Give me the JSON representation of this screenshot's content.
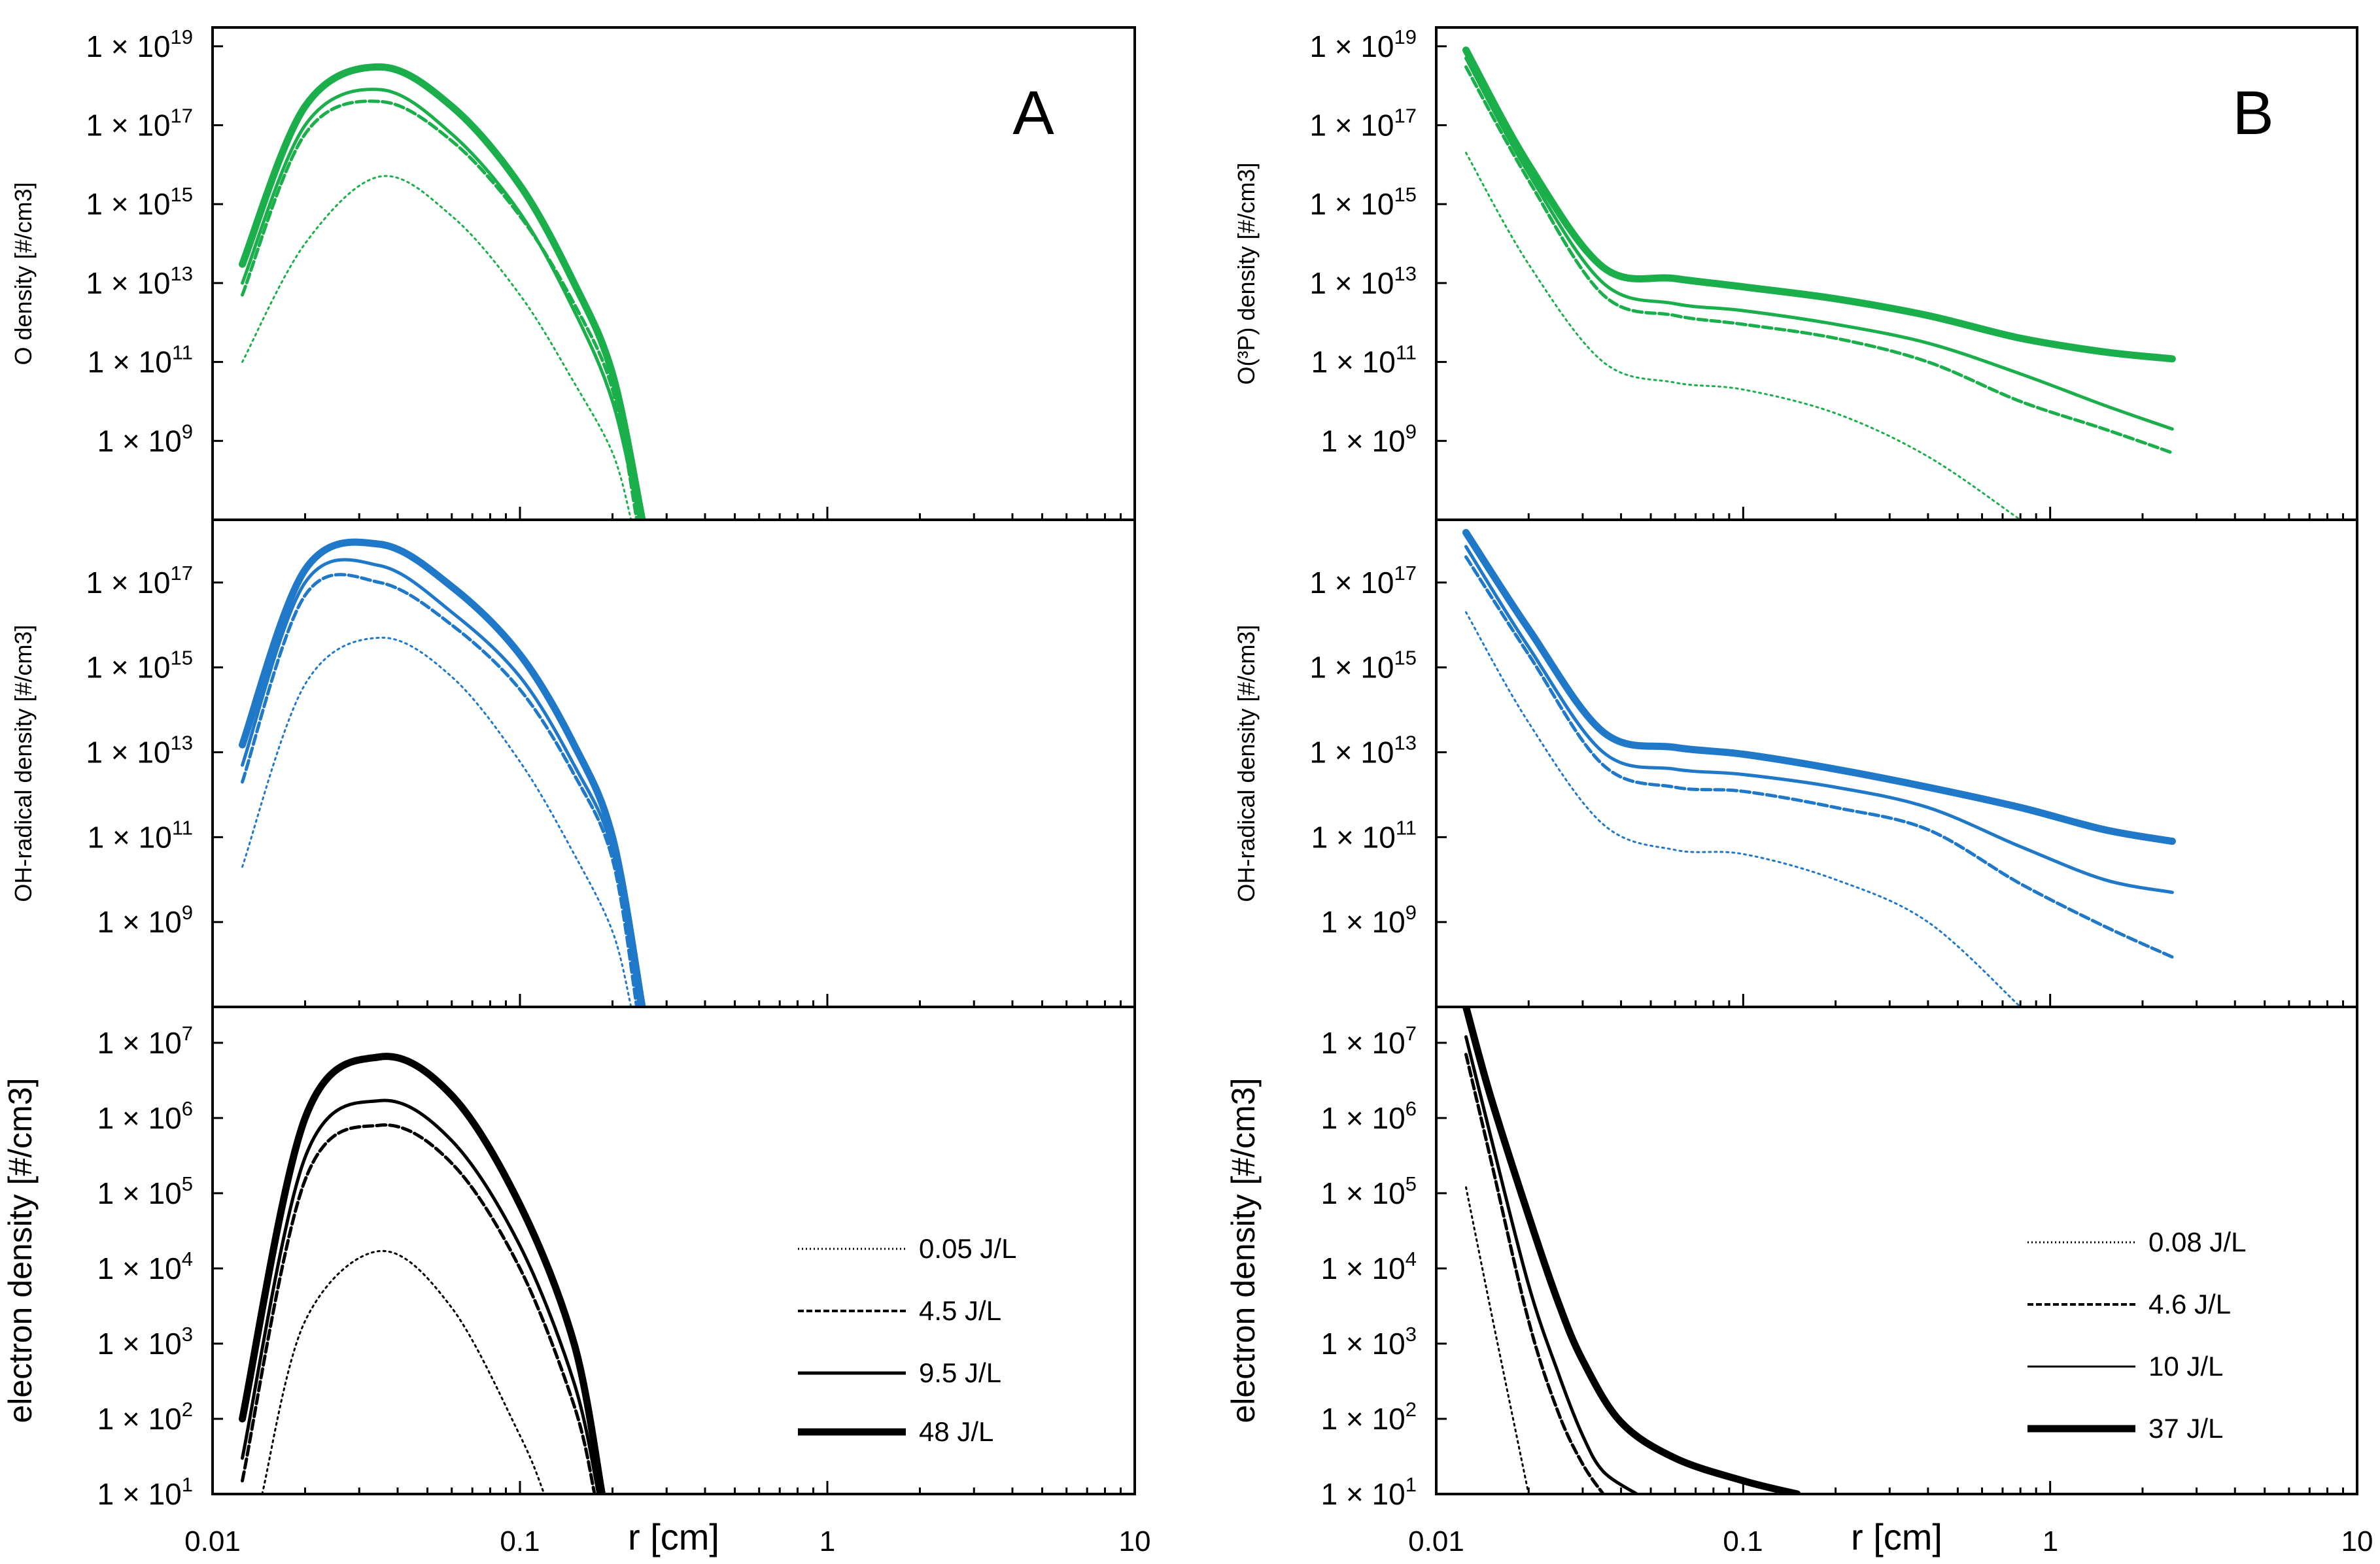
{
  "legends": {
    "A": [
      {
        "label": "0.05 J/L",
        "style": "dotted"
      },
      {
        "label": "4.5 J/L",
        "style": "dashed"
      },
      {
        "label": "9.5 J/L",
        "style": "thin"
      },
      {
        "label": "48 J/L",
        "style": "thick"
      }
    ],
    "B": [
      {
        "label": "0.08 J/L",
        "style": "dotted"
      },
      {
        "label": "4.6 J/L",
        "style": "dashed"
      },
      {
        "label": "10 J/L",
        "style": "thin"
      },
      {
        "label": "37 J/L",
        "style": "thick"
      }
    ]
  },
  "x_axis": {
    "label": "r [cm]",
    "ticks": [
      "0.01",
      "0.1",
      "1",
      "10"
    ]
  },
  "chart_data": [
    {
      "type": "line",
      "panel": "A",
      "title": "A",
      "xlabel": "r [cm]",
      "ylabel": "O density [#/cm3]",
      "xscale": "log",
      "yscale": "log",
      "xlim": [
        0.01,
        10
      ],
      "ylim": [
        10000000.0,
        3e+19
      ],
      "color": "#1aaf4b",
      "grid": false,
      "yticks": [
        {
          "mant": "1 × 10",
          "exp": "19",
          "v": 1e+19
        },
        {
          "mant": "1 × 10",
          "exp": "17",
          "v": 1e+17
        },
        {
          "mant": "1 × 10",
          "exp": "15",
          "v": 1000000000000000.0
        },
        {
          "mant": "1 × 10",
          "exp": "13",
          "v": 10000000000000.0
        },
        {
          "mant": "1 × 10",
          "exp": "11",
          "v": 100000000000.0
        },
        {
          "mant": "1 × 10",
          "exp": "9",
          "v": 1000000000.0
        }
      ],
      "series": [
        {
          "legend": "0.05 J/L",
          "style": "dotted",
          "x": [
            0.0125,
            0.02,
            0.035,
            0.06,
            0.1,
            0.15,
            0.2,
            0.23
          ],
          "y": [
            100000000000.0,
            100000000000000.0,
            5000000000000000.0,
            500000000000000.0,
            5000000000000.0,
            30000000000.0,
            500000000.0,
            10000000.0
          ]
        },
        {
          "legend": "4.5 J/L",
          "style": "dashed",
          "x": [
            0.0125,
            0.02,
            0.035,
            0.06,
            0.1,
            0.15,
            0.2,
            0.24
          ],
          "y": [
            5000000000000.0,
            6e+16,
            4e+17,
            4e+16,
            500000000000000.0,
            3000000000000.0,
            20000000000.0,
            10000000.0
          ]
        },
        {
          "legend": "9.5 J/L",
          "style": "thin",
          "x": [
            0.0125,
            0.02,
            0.035,
            0.06,
            0.1,
            0.15,
            0.2,
            0.245
          ],
          "y": [
            10000000000000.0,
            1e+17,
            8e+17,
            6e+16,
            600000000000000.0,
            2000000000000.0,
            10000000000.0,
            10000000.0
          ]
        },
        {
          "legend": "48 J/L",
          "style": "thick",
          "x": [
            0.0125,
            0.02,
            0.035,
            0.06,
            0.1,
            0.15,
            0.2,
            0.25
          ],
          "y": [
            30000000000000.0,
            3e+17,
            3e+18,
            3e+17,
            3000000000000000.0,
            10000000000000.0,
            50000000000.0,
            10000000.0
          ]
        }
      ]
    },
    {
      "type": "line",
      "panel": "A",
      "title": "",
      "xlabel": "r [cm]",
      "ylabel": "OH-radical density [#/cm3]",
      "xscale": "log",
      "yscale": "log",
      "xlim": [
        0.01,
        10
      ],
      "ylim": [
        10000000.0,
        3e+18
      ],
      "color": "#1f78c8",
      "grid": false,
      "yticks": [
        {
          "mant": "1 × 10",
          "exp": "17",
          "v": 1e+17
        },
        {
          "mant": "1 × 10",
          "exp": "15",
          "v": 1000000000000000.0
        },
        {
          "mant": "1 × 10",
          "exp": "13",
          "v": 10000000000000.0
        },
        {
          "mant": "1 × 10",
          "exp": "11",
          "v": 100000000000.0
        },
        {
          "mant": "1 × 10",
          "exp": "9",
          "v": 1000000000.0
        }
      ],
      "series": [
        {
          "legend": "0.05 J/L",
          "style": "dotted",
          "x": [
            0.0125,
            0.02,
            0.035,
            0.06,
            0.1,
            0.15,
            0.2,
            0.23
          ],
          "y": [
            20000000000.0,
            400000000000000.0,
            5000000000000000.0,
            600000000000000.0,
            6000000000000.0,
            40000000000.0,
            600000000.0,
            10000000.0
          ]
        },
        {
          "legend": "4.5 J/L",
          "style": "dashed",
          "x": [
            0.0125,
            0.02,
            0.035,
            0.06,
            0.1,
            0.15,
            0.2,
            0.24
          ],
          "y": [
            2000000000000.0,
            5e+16,
            1e+17,
            1e+16,
            300000000000000.0,
            3000000000000.0,
            30000000000.0,
            10000000.0
          ]
        },
        {
          "legend": "9.5 J/L",
          "style": "thin",
          "x": [
            0.0125,
            0.02,
            0.035,
            0.06,
            0.1,
            0.15,
            0.2,
            0.245
          ],
          "y": [
            5000000000000.0,
            1e+17,
            2.5e+17,
            2e+16,
            600000000000000.0,
            5000000000000.0,
            50000000000.0,
            10000000.0
          ]
        },
        {
          "legend": "48 J/L",
          "style": "thick",
          "x": [
            0.0125,
            0.02,
            0.035,
            0.06,
            0.1,
            0.15,
            0.2,
            0.25
          ],
          "y": [
            15000000000000.0,
            2e+17,
            8e+17,
            8e+16,
            2000000000000000.0,
            15000000000000.0,
            100000000000.0,
            10000000.0
          ]
        }
      ]
    },
    {
      "type": "line",
      "panel": "A",
      "title": "",
      "xlabel": "r [cm]",
      "ylabel": "electron  density [#/cm3]",
      "xscale": "log",
      "yscale": "log",
      "xlim": [
        0.01,
        10
      ],
      "ylim": [
        10,
        30000000.0
      ],
      "color": "#000000",
      "grid": false,
      "yticks": [
        {
          "mant": "1 × 10",
          "exp": "7",
          "v": 10000000.0
        },
        {
          "mant": "1 × 10",
          "exp": "6",
          "v": 1000000.0
        },
        {
          "mant": "1 × 10",
          "exp": "5",
          "v": 100000.0
        },
        {
          "mant": "1 × 10",
          "exp": "4",
          "v": 10000.0
        },
        {
          "mant": "1 × 10",
          "exp": "3",
          "v": 1000.0
        },
        {
          "mant": "1 × 10",
          "exp": "2",
          "v": 100
        },
        {
          "mant": "1 × 10",
          "exp": "1",
          "v": 10
        }
      ],
      "series": [
        {
          "legend": "0.05 J/L",
          "style": "dotted",
          "x": [
            0.0145,
            0.02,
            0.035,
            0.06,
            0.1,
            0.12
          ],
          "y": [
            10,
            2000.0,
            17000.0,
            3000.0,
            60,
            10
          ]
        },
        {
          "legend": "4.5 J/L",
          "style": "dashed",
          "x": [
            0.0125,
            0.02,
            0.035,
            0.06,
            0.1,
            0.15,
            0.175
          ],
          "y": [
            15,
            150000.0,
            800000.0,
            250000.0,
            10000.0,
            150,
            10
          ]
        },
        {
          "legend": "9.5 J/L",
          "style": "thin",
          "x": [
            0.0125,
            0.02,
            0.035,
            0.06,
            0.1,
            0.15,
            0.18
          ],
          "y": [
            30,
            300000.0,
            1700000.0,
            500000.0,
            20000.0,
            300,
            10
          ]
        },
        {
          "legend": "48 J/L",
          "style": "thick",
          "x": [
            0.0125,
            0.02,
            0.035,
            0.06,
            0.1,
            0.15,
            0.185
          ],
          "y": [
            100,
            1000000.0,
            6500000.0,
            2000000.0,
            70000.0,
            1000.0,
            10
          ]
        }
      ]
    },
    {
      "type": "line",
      "panel": "B",
      "title": "B",
      "xlabel": "r [cm]",
      "ylabel": "O(³P) density [#/cm3]",
      "xscale": "log",
      "yscale": "log",
      "xlim": [
        0.01,
        10
      ],
      "ylim": [
        10000000.0,
        3e+19
      ],
      "color": "#1aaf4b",
      "grid": false,
      "yticks": [
        {
          "mant": "1 × 10",
          "exp": "19",
          "v": 1e+19
        },
        {
          "mant": "1 × 10",
          "exp": "17",
          "v": 1e+17
        },
        {
          "mant": "1 × 10",
          "exp": "15",
          "v": 1000000000000000.0
        },
        {
          "mant": "1 × 10",
          "exp": "13",
          "v": 10000000000000.0
        },
        {
          "mant": "1 × 10",
          "exp": "11",
          "v": 100000000000.0
        },
        {
          "mant": "1 × 10",
          "exp": "9",
          "v": 1000000000.0
        }
      ],
      "series": [
        {
          "legend": "0.08 J/L",
          "style": "dotted",
          "x": [
            0.0125,
            0.02,
            0.035,
            0.06,
            0.1,
            0.2,
            0.4,
            0.8
          ],
          "y": [
            2e+16,
            30000000000000.0,
            100000000000.0,
            30000000000.0,
            20000000000.0,
            5000000000.0,
            400000000.0,
            10000000.0
          ]
        },
        {
          "legend": "4.6 J/L",
          "style": "dashed",
          "x": [
            0.0125,
            0.02,
            0.035,
            0.06,
            0.1,
            0.2,
            0.4,
            0.8,
            1.5,
            2.5
          ],
          "y": [
            3e+18,
            4000000000000000.0,
            5000000000000.0,
            1500000000000.0,
            900000000000.0,
            400000000000.0,
            100000000000.0,
            10000000000.0,
            2000000000.0,
            500000000.0
          ]
        },
        {
          "legend": "10 J/L",
          "style": "thin",
          "x": [
            0.0125,
            0.02,
            0.035,
            0.06,
            0.1,
            0.2,
            0.4,
            0.8,
            1.5,
            2.5
          ],
          "y": [
            5e+18,
            6000000000000000.0,
            10000000000000.0,
            3000000000000.0,
            2000000000000.0,
            900000000000.0,
            300000000000.0,
            50000000000.0,
            8000000000.0,
            2000000000.0
          ]
        },
        {
          "legend": "37 J/L",
          "style": "thick",
          "x": [
            0.0125,
            0.02,
            0.035,
            0.06,
            0.1,
            0.2,
            0.4,
            0.8,
            1.5,
            2.5
          ],
          "y": [
            8e+18,
            1e+16,
            25000000000000.0,
            13000000000000.0,
            8000000000000.0,
            4000000000000.0,
            1500000000000.0,
            400000000000.0,
            180000000000.0,
            120000000000.0
          ]
        }
      ]
    },
    {
      "type": "line",
      "panel": "B",
      "title": "",
      "xlabel": "r [cm]",
      "ylabel": "OH-radical density [#/cm3]",
      "xscale": "log",
      "yscale": "log",
      "xlim": [
        0.01,
        10
      ],
      "ylim": [
        10000000.0,
        3e+18
      ],
      "color": "#1f78c8",
      "grid": false,
      "yticks": [
        {
          "mant": "1 × 10",
          "exp": "17",
          "v": 1e+17
        },
        {
          "mant": "1 × 10",
          "exp": "15",
          "v": 1000000000000000.0
        },
        {
          "mant": "1 × 10",
          "exp": "13",
          "v": 10000000000000.0
        },
        {
          "mant": "1 × 10",
          "exp": "11",
          "v": 100000000000.0
        },
        {
          "mant": "1 × 10",
          "exp": "9",
          "v": 1000000000.0
        }
      ],
      "series": [
        {
          "legend": "0.08 J/L",
          "style": "dotted",
          "x": [
            0.0125,
            0.02,
            0.035,
            0.06,
            0.1,
            0.2,
            0.4,
            0.8
          ],
          "y": [
            2e+16,
            50000000000000.0,
            200000000000.0,
            50000000000.0,
            40000000000.0,
            10000000000.0,
            1000000000.0,
            10000000.0
          ]
        },
        {
          "legend": "4.6 J/L",
          "style": "dashed",
          "x": [
            0.0125,
            0.02,
            0.035,
            0.06,
            0.1,
            0.2,
            0.4,
            0.8,
            1.5,
            2.5
          ],
          "y": [
            4e+17,
            2000000000000000.0,
            5000000000000.0,
            1500000000000.0,
            1200000000000.0,
            500000000000.0,
            150000000000.0,
            8000000000.0,
            800000000.0,
            150000000.0
          ]
        },
        {
          "legend": "10 J/L",
          "style": "thin",
          "x": [
            0.0125,
            0.02,
            0.035,
            0.06,
            0.1,
            0.2,
            0.4,
            0.8,
            1.5,
            2.5
          ],
          "y": [
            7e+17,
            3000000000000000.0,
            10000000000000.0,
            4000000000000.0,
            3000000000000.0,
            1500000000000.0,
            500000000000.0,
            60000000000.0,
            10000000000.0,
            5000000000.0
          ]
        },
        {
          "legend": "37 J/L",
          "style": "thick",
          "x": [
            0.0125,
            0.02,
            0.035,
            0.06,
            0.1,
            0.2,
            0.4,
            0.8,
            1.5,
            2.5
          ],
          "y": [
            1.5e+18,
            8000000000000000.0,
            30000000000000.0,
            13000000000000.0,
            9000000000000.0,
            4000000000000.0,
            1500000000000.0,
            500000000000.0,
            150000000000.0,
            80000000000.0
          ]
        }
      ]
    },
    {
      "type": "line",
      "panel": "B",
      "title": "",
      "xlabel": "r [cm]",
      "ylabel": "electron density [#/cm3]",
      "xscale": "log",
      "yscale": "log",
      "xlim": [
        0.01,
        10
      ],
      "ylim": [
        10,
        30000000.0
      ],
      "color": "#000000",
      "grid": false,
      "yticks": [
        {
          "mant": "1 × 10",
          "exp": "7",
          "v": 10000000.0
        },
        {
          "mant": "1 × 10",
          "exp": "6",
          "v": 1000000.0
        },
        {
          "mant": "1 × 10",
          "exp": "5",
          "v": 100000.0
        },
        {
          "mant": "1 × 10",
          "exp": "4",
          "v": 10000.0
        },
        {
          "mant": "1 × 10",
          "exp": "3",
          "v": 1000.0
        },
        {
          "mant": "1 × 10",
          "exp": "2",
          "v": 100
        },
        {
          "mant": "1 × 10",
          "exp": "1",
          "v": 10
        }
      ],
      "series": [
        {
          "legend": "0.08 J/L",
          "style": "dotted",
          "x": [
            0.0125,
            0.015,
            0.018,
            0.02
          ],
          "y": [
            120000.0,
            3000.0,
            80,
            10
          ]
        },
        {
          "legend": "4.6 J/L",
          "style": "dashed",
          "x": [
            0.0125,
            0.015,
            0.02,
            0.025,
            0.03,
            0.035
          ],
          "y": [
            7000000.0,
            300000.0,
            2000.0,
            120,
            25,
            10
          ]
        },
        {
          "legend": "10 J/L",
          "style": "thin",
          "x": [
            0.0125,
            0.015,
            0.02,
            0.025,
            0.03,
            0.035,
            0.045
          ],
          "y": [
            12000000.0,
            600000.0,
            6000.0,
            400,
            60,
            20,
            10
          ]
        },
        {
          "legend": "37 J/L",
          "style": "thick",
          "x": [
            0.0125,
            0.015,
            0.02,
            0.025,
            0.03,
            0.04,
            0.06,
            0.1,
            0.15
          ],
          "y": [
            30000000.0,
            2000000.0,
            50000.0,
            3500.0,
            600,
            90,
            30,
            15,
            10
          ]
        }
      ]
    }
  ]
}
